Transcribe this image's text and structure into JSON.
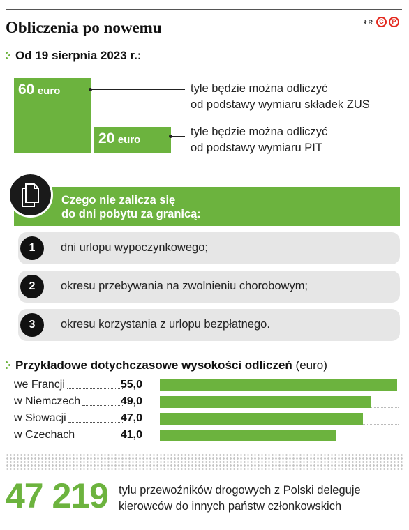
{
  "header": {
    "title": "Obliczenia po nowemu",
    "author": "ŁR",
    "brand_marks": [
      "C",
      "P"
    ],
    "accent_color": "#6cb33e",
    "brand_color": "#e3261b"
  },
  "section1": {
    "heading": "Od 19 sierpnia 2023 r.:",
    "items": [
      {
        "value": "60",
        "unit": "euro",
        "desc_line1": "tyle będzie można odliczyć",
        "desc_line2": "od podstawy wymiaru składek ZUS"
      },
      {
        "value": "20",
        "unit": "euro",
        "desc_line1": "tyle będzie można odliczyć",
        "desc_line2": "od podstawy wymiaru PIT"
      }
    ]
  },
  "section2": {
    "icon": "documents-icon",
    "heading_line1": "Czego nie zalicza się",
    "heading_line2": "do dni pobytu za granicą:",
    "items": [
      {
        "num": "1",
        "text": "dni urlopu wypoczynkowego;"
      },
      {
        "num": "2",
        "text": "okresu przebywania na zwolnieniu chorobowym;"
      },
      {
        "num": "3",
        "text": "okresu korzystania z urlopu bezpłatnego."
      }
    ]
  },
  "section3": {
    "heading": "Przykładowe dotychczasowe wysokości odliczeń",
    "unit": "(euro)"
  },
  "chart_data": [
    {
      "type": "bar",
      "categories": [
        "ZUS",
        "PIT"
      ],
      "values": [
        60,
        20
      ],
      "value_labels": [
        "60 euro",
        "20 euro"
      ],
      "orientation": "vertical"
    },
    {
      "type": "bar",
      "orientation": "horizontal",
      "title": "Przykładowe dotychczasowe wysokości odliczeń (euro)",
      "categories": [
        "we Francji",
        "w Niemczech",
        "w Słowacji",
        "w Czechach"
      ],
      "values": [
        55.0,
        49.0,
        47.0,
        41.0
      ],
      "value_labels": [
        "55,0",
        "49,0",
        "47,0",
        "41,0"
      ],
      "xlim": [
        0,
        55
      ]
    }
  ],
  "footer": {
    "big_number": "47 219",
    "text_line1": "tylu przewoźników drogowych z Polski deleguje",
    "text_line2": "kierowców do innych państw członkowskich"
  }
}
